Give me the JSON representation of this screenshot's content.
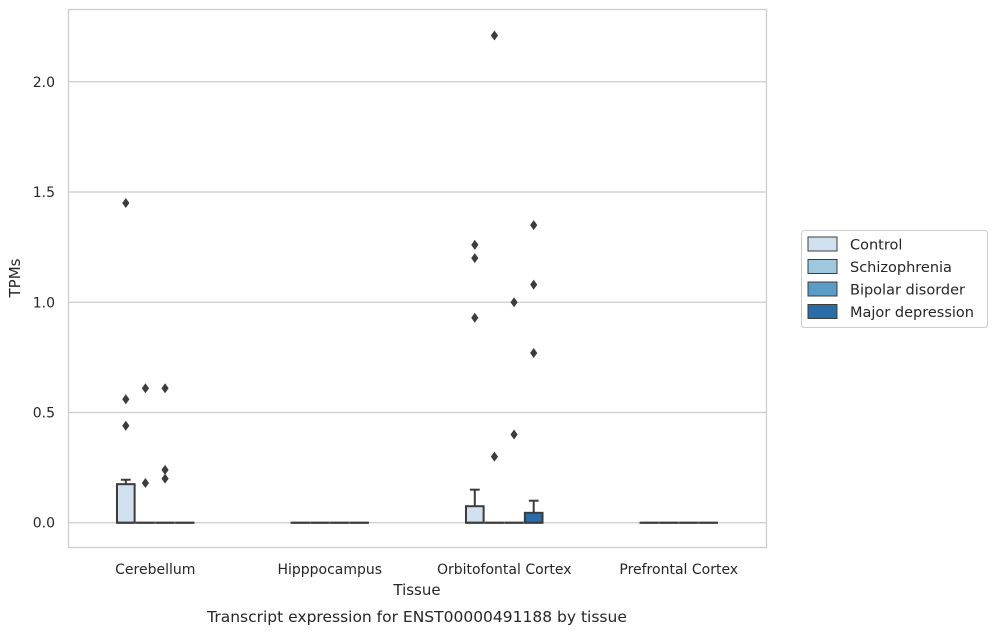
{
  "chart_data": {
    "type": "box",
    "caption": "Transcript expression for ENST00000491188 by tissue",
    "xlabel": "Tissue",
    "ylabel": "TPMs",
    "ylim": [
      -0.11,
      2.33
    ],
    "yticks": [
      0.0,
      0.5,
      1.0,
      1.5,
      2.0
    ],
    "ytick_labels": [
      "0.0",
      "0.5",
      "1.0",
      "1.5",
      "2.0"
    ],
    "grid": "horizontal",
    "legend_position": "right",
    "categories": [
      "Cerebellum",
      "Hipppocampus",
      "Orbitofontal Cortex",
      "Prefrontal Cortex"
    ],
    "series": [
      {
        "name": "Control",
        "color": "#d1e1ef",
        "boxes": [
          {
            "q1": 0.0,
            "median": 0.0,
            "q3": 0.175,
            "whisker_low": 0.0,
            "whisker_high": 0.195,
            "outliers": [
              1.45,
              0.56,
              0.44
            ]
          },
          {
            "q1": 0.0,
            "median": 0.0,
            "q3": 0.0,
            "whisker_low": 0.0,
            "whisker_high": 0.0,
            "outliers": []
          },
          {
            "q1": 0.0,
            "median": 0.0,
            "q3": 0.075,
            "whisker_low": 0.0,
            "whisker_high": 0.15,
            "outliers": [
              1.26,
              1.2,
              0.93
            ]
          },
          {
            "q1": 0.0,
            "median": 0.0,
            "q3": 0.0,
            "whisker_low": 0.0,
            "whisker_high": 0.0,
            "outliers": []
          }
        ]
      },
      {
        "name": "Schizophrenia",
        "color": "#9dc8df",
        "boxes": [
          {
            "q1": 0.0,
            "median": 0.0,
            "q3": 0.0,
            "whisker_low": 0.0,
            "whisker_high": 0.0,
            "outliers": [
              0.61,
              0.18
            ]
          },
          {
            "q1": 0.0,
            "median": 0.0,
            "q3": 0.0,
            "whisker_low": 0.0,
            "whisker_high": 0.0,
            "outliers": []
          },
          {
            "q1": 0.0,
            "median": 0.0,
            "q3": 0.0,
            "whisker_low": 0.0,
            "whisker_high": 0.0,
            "outliers": [
              2.21,
              0.3
            ]
          },
          {
            "q1": 0.0,
            "median": 0.0,
            "q3": 0.0,
            "whisker_low": 0.0,
            "whisker_high": 0.0,
            "outliers": []
          }
        ]
      },
      {
        "name": "Bipolar disorder",
        "color": "#5b9bc7",
        "boxes": [
          {
            "q1": 0.0,
            "median": 0.0,
            "q3": 0.0,
            "whisker_low": 0.0,
            "whisker_high": 0.0,
            "outliers": [
              0.61,
              0.24,
              0.2
            ]
          },
          {
            "q1": 0.0,
            "median": 0.0,
            "q3": 0.0,
            "whisker_low": 0.0,
            "whisker_high": 0.0,
            "outliers": []
          },
          {
            "q1": 0.0,
            "median": 0.0,
            "q3": 0.0,
            "whisker_low": 0.0,
            "whisker_high": 0.0,
            "outliers": [
              1.0,
              0.4
            ]
          },
          {
            "q1": 0.0,
            "median": 0.0,
            "q3": 0.0,
            "whisker_low": 0.0,
            "whisker_high": 0.0,
            "outliers": []
          }
        ]
      },
      {
        "name": "Major depression",
        "color": "#2b6ba8",
        "boxes": [
          {
            "q1": 0.0,
            "median": 0.0,
            "q3": 0.0,
            "whisker_low": 0.0,
            "whisker_high": 0.0,
            "outliers": []
          },
          {
            "q1": 0.0,
            "median": 0.0,
            "q3": 0.0,
            "whisker_low": 0.0,
            "whisker_high": 0.0,
            "outliers": []
          },
          {
            "q1": 0.0,
            "median": 0.0,
            "q3": 0.045,
            "whisker_low": 0.0,
            "whisker_high": 0.1,
            "outliers": [
              1.35,
              1.08,
              0.77
            ]
          },
          {
            "q1": 0.0,
            "median": 0.0,
            "q3": 0.0,
            "whisker_low": 0.0,
            "whisker_high": 0.0,
            "outliers": []
          }
        ]
      }
    ]
  }
}
